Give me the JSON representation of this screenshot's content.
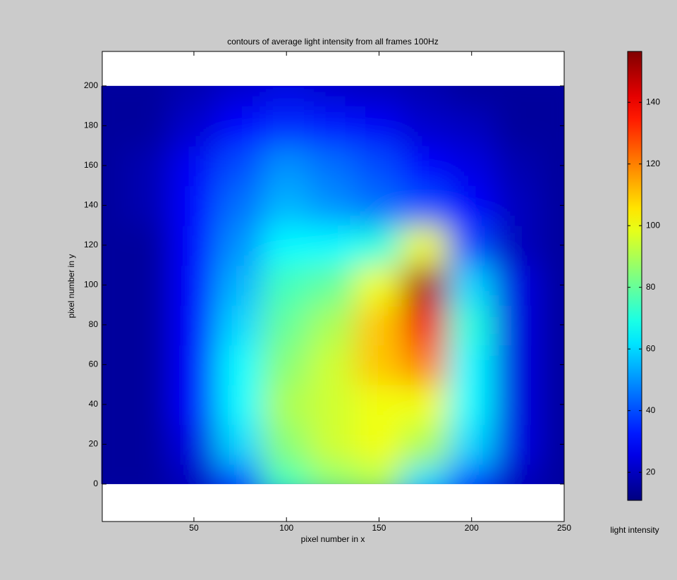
{
  "chart_data": {
    "type": "contour",
    "title": "contours of average light intensity from all frames 100Hz",
    "x_label": "pixel number in x",
    "y_label": "pixel number in y",
    "colorbar_label": "light intensity",
    "x": [
      0,
      25,
      50,
      75,
      100,
      125,
      150,
      175,
      200,
      225,
      250
    ],
    "y": [
      0,
      20,
      40,
      60,
      80,
      100,
      120,
      140,
      160,
      180,
      200
    ],
    "z": [
      [
        15,
        15,
        20,
        40,
        75,
        85,
        90,
        60,
        40,
        20,
        15
      ],
      [
        15,
        15,
        25,
        60,
        85,
        95,
        100,
        90,
        60,
        25,
        15
      ],
      [
        15,
        15,
        30,
        65,
        90,
        95,
        100,
        100,
        65,
        25,
        15
      ],
      [
        15,
        15,
        30,
        65,
        85,
        95,
        110,
        120,
        65,
        25,
        15
      ],
      [
        15,
        15,
        30,
        60,
        80,
        90,
        110,
        140,
        70,
        25,
        15
      ],
      [
        15,
        15,
        30,
        55,
        75,
        80,
        100,
        150,
        60,
        25,
        15
      ],
      [
        15,
        15,
        30,
        50,
        65,
        65,
        70,
        100,
        40,
        20,
        15
      ],
      [
        15,
        18,
        30,
        45,
        55,
        50,
        45,
        40,
        30,
        20,
        15
      ],
      [
        15,
        18,
        28,
        40,
        50,
        45,
        40,
        30,
        25,
        18,
        15
      ],
      [
        15,
        15,
        22,
        30,
        35,
        32,
        28,
        22,
        20,
        15,
        15
      ],
      [
        15,
        15,
        18,
        22,
        25,
        22,
        20,
        18,
        15,
        15,
        15
      ]
    ],
    "xlim": [
      0.5,
      250
    ],
    "ylim": [
      -18.8,
      217.3
    ],
    "xticks": [
      50,
      100,
      150,
      200,
      250
    ],
    "yticks": [
      0,
      20,
      40,
      60,
      80,
      100,
      120,
      140,
      160,
      180,
      200
    ],
    "clim": [
      10.9,
      156.5
    ],
    "cticks": [
      20,
      40,
      60,
      80,
      100,
      120,
      140
    ],
    "colormap": "jet"
  }
}
